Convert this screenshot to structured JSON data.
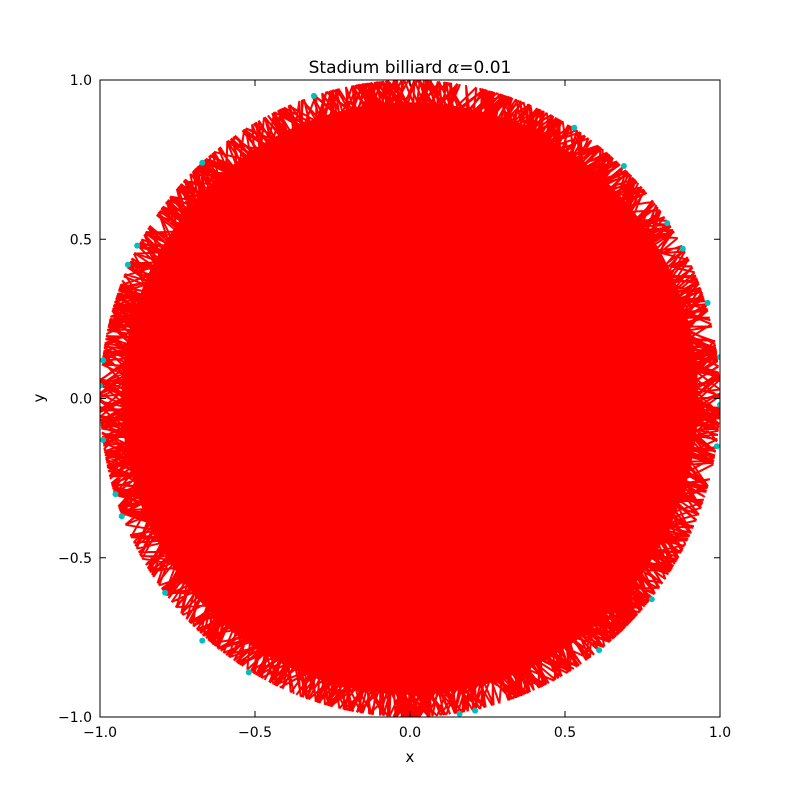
{
  "chart_data": {
    "type": "scatter",
    "title": "Stadium billiard",
    "title_symbol": "α",
    "title_value": "=0.01",
    "xlabel": "x",
    "ylabel": "y",
    "xlim": [
      -1.0,
      1.0
    ],
    "ylim": [
      -1.0,
      1.0
    ],
    "xticks": [
      -1.0,
      -0.5,
      0.0,
      0.5,
      1.0
    ],
    "yticks": [
      -1.0,
      -0.5,
      0.0,
      0.5,
      1.0
    ],
    "xtick_labels": [
      "−1.0",
      "−0.5",
      "0.0",
      "0.5",
      "1.0"
    ],
    "ytick_labels": [
      "−1.0",
      "−0.5",
      "0.0",
      "0.5",
      "1.0"
    ],
    "grid": false,
    "legend": "none",
    "boundary": {
      "shape": "stadium",
      "alpha": 0.01,
      "radius": 1.0
    },
    "series": [
      {
        "kind": "trajectory-segments",
        "color": "#ff0000",
        "note_visible": "chords between successive bounce points, dense fill"
      },
      {
        "kind": "bounce-points",
        "color": "#00bfbf",
        "points": [
          [
            -0.31,
            0.95
          ],
          [
            0.53,
            0.85
          ],
          [
            0.69,
            0.73
          ],
          [
            0.83,
            0.55
          ],
          [
            0.96,
            0.3
          ],
          [
            1.0,
            0.13
          ],
          [
            1.0,
            -0.02
          ],
          [
            0.99,
            -0.15
          ],
          [
            0.78,
            -0.63
          ],
          [
            0.61,
            -0.79
          ],
          [
            0.21,
            -0.98
          ],
          [
            0.16,
            -0.99
          ],
          [
            -0.52,
            -0.86
          ],
          [
            -0.67,
            -0.76
          ],
          [
            -0.79,
            -0.61
          ],
          [
            -0.93,
            -0.37
          ],
          [
            -0.99,
            -0.13
          ],
          [
            -1.0,
            0.04
          ],
          [
            -0.99,
            0.12
          ],
          [
            -0.88,
            0.48
          ],
          [
            -0.67,
            0.74
          ],
          [
            0.88,
            0.47
          ],
          [
            -0.91,
            0.42
          ],
          [
            -0.95,
            -0.3
          ]
        ]
      }
    ]
  },
  "colors": {
    "trajectory": "#ff0000",
    "bounce": "#00bfbf",
    "axes": "#000000",
    "background": "#ffffff"
  }
}
